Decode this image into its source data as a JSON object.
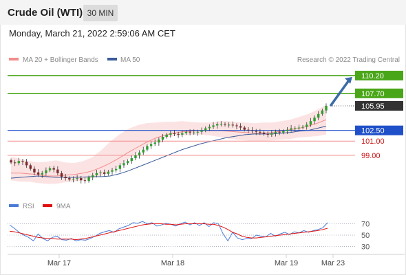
{
  "header": {
    "title": "Crude Oil (WTI)",
    "timeframe": "30 MIN"
  },
  "date": "Monday, March 21, 2022 2:59:06 AM CET",
  "legend": [
    {
      "label": "MA 20 + Bollinger Bands",
      "color": "#f28c8c"
    },
    {
      "label": "MA 50",
      "color": "#3a5a9a"
    }
  ],
  "copyright": "Research © 2022 Trading Central",
  "rsi_legend": [
    {
      "label": "RSI",
      "color": "#4a7bd6"
    },
    {
      "label": "9MA",
      "color": "#e01010"
    }
  ],
  "colors": {
    "resistance": "#4aa619",
    "pivot": "#1f4fc9",
    "support": "#f08a8a",
    "support_text": "#cc1111",
    "last": "#333333"
  },
  "chart_data": [
    {
      "type": "candlestick",
      "title": "Crude Oil (WTI) 30 MIN",
      "x_ticks": [
        "Mar 17",
        "Mar 18",
        "Mar 19",
        "Mar 23"
      ],
      "y_range": [
        97,
        111
      ],
      "levels": [
        {
          "label": "110.20",
          "value": 110.2,
          "kind": "resistance"
        },
        {
          "label": "107.70",
          "value": 107.7,
          "kind": "resistance"
        },
        {
          "label": "105.95",
          "value": 105.95,
          "kind": "last"
        },
        {
          "label": "102.50",
          "value": 102.5,
          "kind": "pivot"
        },
        {
          "label": "101.00",
          "value": 101.0,
          "kind": "support"
        },
        {
          "label": "99.00",
          "value": 99.0,
          "kind": "support"
        }
      ],
      "close": [
        98.0,
        97.9,
        98.2,
        98.1,
        97.6,
        97.1,
        96.6,
        96.3,
        96.5,
        96.9,
        97.2,
        97.0,
        96.5,
        96.0,
        95.8,
        95.6,
        95.7,
        95.8,
        95.5,
        95.4,
        95.9,
        96.2,
        96.5,
        96.6,
        96.4,
        96.7,
        96.9,
        97.1,
        97.6,
        97.9,
        98.2,
        98.6,
        99.0,
        99.4,
        99.8,
        100.3,
        100.6,
        100.8,
        101.2,
        101.6,
        101.9,
        102.1,
        102.0,
        101.9,
        102.1,
        102.3,
        102.2,
        102.2,
        102.3,
        102.5,
        102.8,
        103.0,
        103.2,
        103.4,
        103.4,
        103.3,
        103.3,
        103.2,
        103.1,
        102.9,
        102.6,
        102.5,
        102.4,
        102.3,
        102.2,
        102.0,
        101.9,
        102.1,
        102.3,
        102.2,
        102.4,
        102.6,
        102.8,
        102.8,
        102.9,
        103.0,
        103.3,
        103.8,
        104.3,
        104.8,
        105.3,
        105.95
      ],
      "ma50": [
        95.8,
        95.9,
        96.0,
        96.1,
        96.0,
        95.9,
        95.9,
        95.9,
        95.95,
        96.0,
        96.0,
        96.1,
        96.4,
        96.8,
        97.3,
        97.8,
        98.3,
        98.8,
        99.3,
        99.8,
        100.2,
        100.6,
        100.9,
        101.2,
        101.5,
        101.7,
        101.9,
        102.0,
        102.0,
        102.0,
        102.1,
        102.2,
        102.4,
        102.5,
        102.8,
        103.1
      ],
      "ma20": [
        96.5,
        96.5,
        96.4,
        96.3,
        96.1,
        96.1,
        96.2,
        96.3,
        96.5,
        96.8,
        97.3,
        97.9,
        98.6,
        99.4,
        100.1,
        100.8,
        101.4,
        101.8,
        102.1,
        102.3,
        102.4,
        102.5,
        102.5,
        102.5,
        102.4,
        102.3,
        102.2,
        102.1,
        102.1,
        102.2,
        102.4,
        102.6,
        102.8,
        103.1,
        103.5,
        104.0
      ],
      "bb_upper": [
        98.8,
        98.5,
        98.2,
        98.0,
        98.1,
        98.3,
        98.0,
        97.9,
        98.2,
        98.7,
        99.7,
        100.9,
        101.9,
        102.7,
        103.2,
        103.5,
        103.6,
        103.7,
        103.7,
        103.8,
        103.7,
        103.6,
        103.6,
        103.8,
        103.8,
        103.7,
        103.6,
        103.5,
        103.6,
        103.6,
        103.8,
        104.0,
        104.4,
        104.8,
        105.4,
        106.1
      ],
      "bb_lower": [
        95.5,
        95.3,
        95.3,
        95.1,
        95.0,
        95.0,
        95.2,
        95.3,
        95.5,
        95.8,
        96.1,
        96.6,
        97.5,
        98.5,
        99.4,
        100.3,
        101.0,
        101.4,
        101.7,
        101.8,
        101.9,
        101.9,
        101.8,
        101.6,
        101.4,
        101.2,
        101.1,
        101.0,
        101.0,
        101.1,
        101.2,
        101.3,
        101.5,
        101.6,
        101.7,
        101.9
      ]
    },
    {
      "type": "line",
      "title": "RSI",
      "x_ticks": [
        "Mar 17",
        "Mar 18",
        "Mar 19",
        "Mar 23"
      ],
      "y_range": [
        20,
        80
      ],
      "y_ticks": [
        "70",
        "50",
        "30"
      ],
      "series": [
        {
          "name": "RSI",
          "values": [
            68,
            62,
            55,
            50,
            46,
            40,
            52,
            44,
            40,
            46,
            48,
            42,
            41,
            44,
            40,
            42,
            41,
            44,
            48,
            53,
            56,
            58,
            55,
            61,
            64,
            67,
            72,
            71,
            74,
            70,
            72,
            66,
            68,
            71,
            69,
            66,
            70,
            73,
            68,
            72,
            67,
            72,
            65,
            72,
            70,
            52,
            40,
            55,
            45,
            42,
            44,
            44,
            50,
            48,
            47,
            53,
            48,
            52,
            55,
            51,
            56,
            54,
            58,
            55,
            58,
            60,
            63,
            72
          ]
        },
        {
          "name": "9MA",
          "values": [
            57,
            56,
            54,
            52,
            50,
            48,
            46,
            45,
            44,
            44,
            43,
            43,
            43,
            43,
            42,
            43,
            44,
            46,
            48,
            50,
            52,
            54,
            56,
            58,
            60,
            62,
            64,
            66,
            68,
            69,
            70,
            70,
            70,
            69,
            69,
            68,
            69,
            70,
            70,
            70,
            70,
            70,
            69,
            69,
            67,
            64,
            60,
            55,
            52,
            48,
            46,
            45,
            45,
            46,
            47,
            48,
            49,
            50,
            51,
            52,
            53,
            54,
            55,
            56,
            57,
            58,
            60,
            62
          ]
        }
      ]
    }
  ]
}
